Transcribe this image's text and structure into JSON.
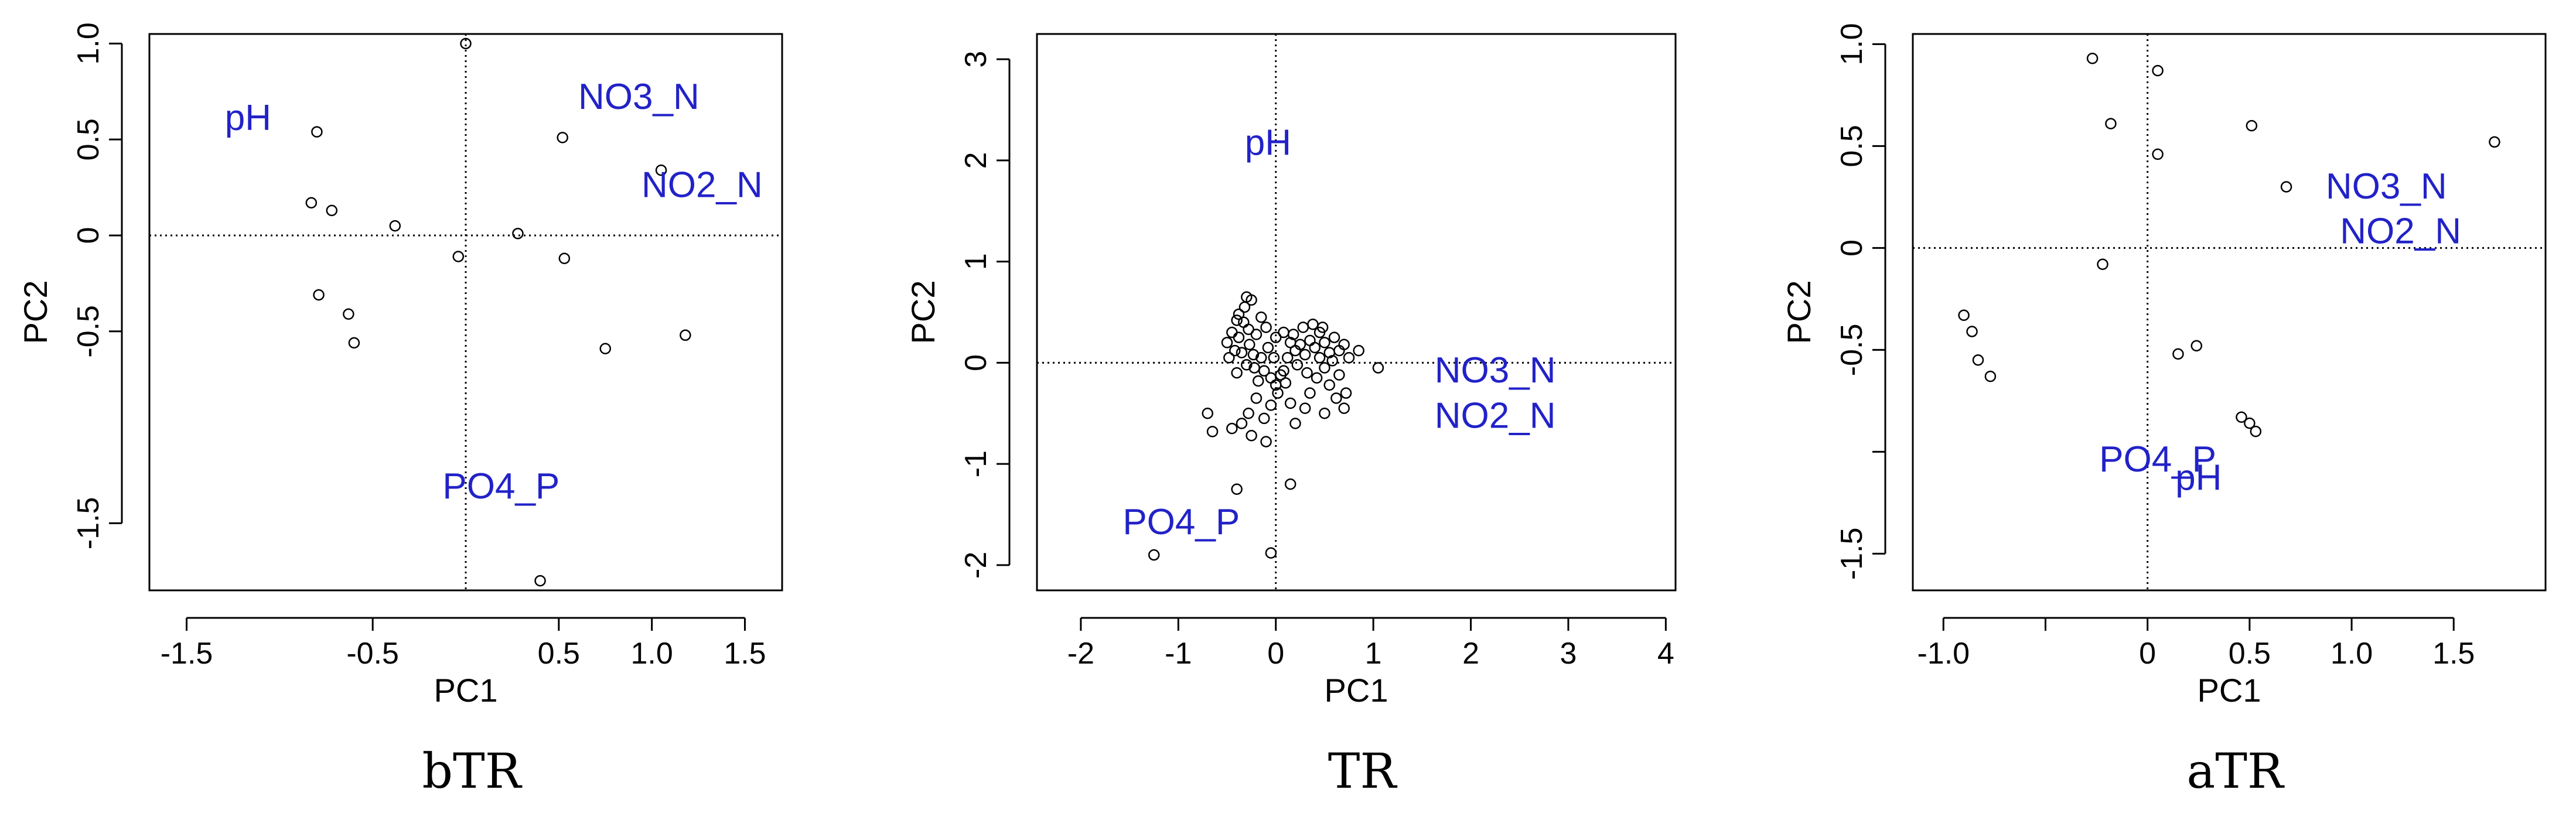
{
  "chart_data": [
    {
      "type": "scatter",
      "caption": "bTR",
      "xlabel": "PC1",
      "ylabel": "PC2",
      "xlim": [
        -1.7,
        1.7
      ],
      "ylim": [
        -1.85,
        1.05
      ],
      "xticks": [
        {
          "v": -1.5,
          "label": "-1.5"
        },
        {
          "v": -0.5,
          "label": "-0.5"
        },
        {
          "v": 0.5,
          "label": "0.5"
        },
        {
          "v": 1.0,
          "label": "1.0"
        },
        {
          "v": 1.5,
          "label": "1.5"
        }
      ],
      "yticks": [
        {
          "v": 1.0,
          "label": "1.0"
        },
        {
          "v": 0.5,
          "label": "0.5"
        },
        {
          "v": 0.0,
          "label": "0"
        },
        {
          "v": -0.5,
          "label": "-0.5"
        },
        {
          "v": -1.5,
          "label": "-1.5"
        }
      ],
      "reference_lines": {
        "x": 0,
        "y": 0,
        "style": "dotted"
      },
      "points": [
        {
          "x": 0.0,
          "y": 1.0
        },
        {
          "x": -0.8,
          "y": 0.54
        },
        {
          "x": 0.52,
          "y": 0.51
        },
        {
          "x": 1.05,
          "y": 0.34
        },
        {
          "x": -0.83,
          "y": 0.17
        },
        {
          "x": -0.72,
          "y": 0.13
        },
        {
          "x": -0.38,
          "y": 0.05
        },
        {
          "x": -0.04,
          "y": -0.11
        },
        {
          "x": 0.28,
          "y": 0.01
        },
        {
          "x": 0.53,
          "y": -0.12
        },
        {
          "x": -0.79,
          "y": -0.31
        },
        {
          "x": -0.63,
          "y": -0.41
        },
        {
          "x": -0.6,
          "y": -0.56
        },
        {
          "x": 0.75,
          "y": -0.59
        },
        {
          "x": 1.18,
          "y": -0.52
        },
        {
          "x": 0.4,
          "y": -1.8
        }
      ],
      "labels": [
        {
          "text": "pH",
          "x": -1.17,
          "y": 0.6
        },
        {
          "text": "NO3_N",
          "x": 0.93,
          "y": 0.71
        },
        {
          "text": "NO2_N",
          "x": 1.27,
          "y": 0.25
        },
        {
          "text": "PO4_P",
          "x": 0.19,
          "y": -1.32
        }
      ]
    },
    {
      "type": "scatter",
      "caption": "TR",
      "xlabel": "PC1",
      "ylabel": "PC2",
      "xlim": [
        -2.45,
        4.1
      ],
      "ylim": [
        -2.25,
        3.25
      ],
      "xticks": [
        {
          "v": -2,
          "label": "-2"
        },
        {
          "v": -1,
          "label": "-1"
        },
        {
          "v": 0,
          "label": "0"
        },
        {
          "v": 1,
          "label": "1"
        },
        {
          "v": 2,
          "label": "2"
        },
        {
          "v": 3,
          "label": "3"
        },
        {
          "v": 4,
          "label": "4"
        }
      ],
      "yticks": [
        {
          "v": 3,
          "label": "3"
        },
        {
          "v": 2,
          "label": "2"
        },
        {
          "v": 1,
          "label": "1"
        },
        {
          "v": 0,
          "label": "0"
        },
        {
          "v": -1,
          "label": "-1"
        },
        {
          "v": -2,
          "label": "-2"
        }
      ],
      "reference_lines": {
        "x": 0,
        "y": 0,
        "style": "dotted"
      },
      "points": [
        {
          "x": -0.3,
          "y": 0.65
        },
        {
          "x": -0.25,
          "y": 0.62
        },
        {
          "x": -0.32,
          "y": 0.55
        },
        {
          "x": -0.4,
          "y": 0.42
        },
        {
          "x": -0.33,
          "y": 0.4
        },
        {
          "x": -0.28,
          "y": 0.33
        },
        {
          "x": -0.45,
          "y": 0.3
        },
        {
          "x": -0.38,
          "y": 0.25
        },
        {
          "x": -0.2,
          "y": 0.28
        },
        {
          "x": -0.5,
          "y": 0.2
        },
        {
          "x": -0.42,
          "y": 0.12
        },
        {
          "x": -0.35,
          "y": 0.1
        },
        {
          "x": -0.27,
          "y": 0.18
        },
        {
          "x": -0.15,
          "y": 0.45
        },
        {
          "x": -0.1,
          "y": 0.35
        },
        {
          "x": -0.48,
          "y": 0.05
        },
        {
          "x": -0.3,
          "y": -0.02
        },
        {
          "x": -0.22,
          "y": -0.05
        },
        {
          "x": -0.4,
          "y": -0.1
        },
        {
          "x": -0.12,
          "y": -0.08
        },
        {
          "x": -0.05,
          "y": -0.15
        },
        {
          "x": 0.05,
          "y": -0.12
        },
        {
          "x": 0.1,
          "y": -0.2
        },
        {
          "x": 0.02,
          "y": -0.3
        },
        {
          "x": 0.15,
          "y": 0.2
        },
        {
          "x": 0.2,
          "y": 0.12
        },
        {
          "x": 0.25,
          "y": 0.18
        },
        {
          "x": 0.3,
          "y": 0.08
        },
        {
          "x": 0.35,
          "y": 0.22
        },
        {
          "x": 0.4,
          "y": 0.15
        },
        {
          "x": 0.45,
          "y": 0.3
        },
        {
          "x": 0.5,
          "y": 0.2
        },
        {
          "x": 0.55,
          "y": 0.1
        },
        {
          "x": 0.6,
          "y": 0.25
        },
        {
          "x": 0.65,
          "y": 0.12
        },
        {
          "x": 0.7,
          "y": 0.18
        },
        {
          "x": 0.75,
          "y": 0.05
        },
        {
          "x": 0.85,
          "y": 0.12
        },
        {
          "x": 1.05,
          "y": -0.05
        },
        {
          "x": 0.5,
          "y": -0.05
        },
        {
          "x": 0.42,
          "y": -0.15
        },
        {
          "x": 0.55,
          "y": -0.22
        },
        {
          "x": 0.35,
          "y": -0.3
        },
        {
          "x": 0.62,
          "y": -0.35
        },
        {
          "x": 0.7,
          "y": -0.45
        },
        {
          "x": 0.5,
          "y": -0.5
        },
        {
          "x": 0.3,
          "y": -0.45
        },
        {
          "x": 0.2,
          "y": -0.6
        },
        {
          "x": 0.15,
          "y": -0.4
        },
        {
          "x": -0.05,
          "y": -0.42
        },
        {
          "x": -0.12,
          "y": -0.55
        },
        {
          "x": -0.2,
          "y": -0.35
        },
        {
          "x": -0.28,
          "y": -0.5
        },
        {
          "x": -0.35,
          "y": -0.6
        },
        {
          "x": -0.45,
          "y": -0.65
        },
        {
          "x": -0.7,
          "y": -0.5
        },
        {
          "x": -0.65,
          "y": -0.68
        },
        {
          "x": -0.25,
          "y": -0.72
        },
        {
          "x": -0.1,
          "y": -0.78
        },
        {
          "x": -0.4,
          "y": -1.25
        },
        {
          "x": 0.15,
          "y": -1.2
        },
        {
          "x": -0.05,
          "y": -1.88
        },
        {
          "x": -1.25,
          "y": -1.9
        },
        {
          "x": -0.08,
          "y": 0.15
        },
        {
          "x": 0.0,
          "y": 0.25
        },
        {
          "x": 0.08,
          "y": 0.3
        },
        {
          "x": 0.12,
          "y": 0.05
        },
        {
          "x": 0.22,
          "y": -0.02
        },
        {
          "x": 0.28,
          "y": 0.35
        },
        {
          "x": 0.38,
          "y": 0.38
        },
        {
          "x": 0.48,
          "y": 0.35
        },
        {
          "x": 0.58,
          "y": 0.02
        },
        {
          "x": 0.65,
          "y": -0.12
        },
        {
          "x": -0.15,
          "y": 0.05
        },
        {
          "x": -0.18,
          "y": -0.18
        },
        {
          "x": 0.0,
          "y": -0.22
        },
        {
          "x": 0.08,
          "y": -0.08
        },
        {
          "x": -0.38,
          "y": 0.48
        },
        {
          "x": -0.23,
          "y": 0.08
        },
        {
          "x": 0.32,
          "y": -0.1
        },
        {
          "x": 0.45,
          "y": 0.05
        },
        {
          "x": 0.18,
          "y": 0.28
        },
        {
          "x": -0.02,
          "y": 0.05
        },
        {
          "x": 0.72,
          "y": -0.3
        }
      ],
      "labels": [
        {
          "text": "pH",
          "x": -0.08,
          "y": 2.15
        },
        {
          "text": "NO3_N",
          "x": 2.25,
          "y": -0.1
        },
        {
          "text": "NO2_N",
          "x": 2.25,
          "y": -0.55
        },
        {
          "text": "PO4_P",
          "x": -0.97,
          "y": -1.6
        }
      ]
    },
    {
      "type": "scatter",
      "caption": "aTR",
      "xlabel": "PC1",
      "ylabel": "PC2",
      "xlim": [
        -1.15,
        1.95
      ],
      "ylim": [
        -1.68,
        1.05
      ],
      "xticks": [
        {
          "v": -1.0,
          "label": "-1.0"
        },
        {
          "v": -0.5,
          "label": ""
        },
        {
          "v": 0.0,
          "label": "0"
        },
        {
          "v": 0.5,
          "label": "0.5"
        },
        {
          "v": 1.0,
          "label": "1.0"
        },
        {
          "v": 1.5,
          "label": "1.5"
        }
      ],
      "yticks": [
        {
          "v": 1.0,
          "label": "1.0"
        },
        {
          "v": 0.5,
          "label": "0.5"
        },
        {
          "v": 0.0,
          "label": "0"
        },
        {
          "v": -0.5,
          "label": "-0.5"
        },
        {
          "v": -1.0,
          "label": ""
        },
        {
          "v": -1.5,
          "label": "-1.5"
        }
      ],
      "reference_lines": {
        "x": 0,
        "y": 0,
        "style": "dotted"
      },
      "points": [
        {
          "x": -0.27,
          "y": 0.93
        },
        {
          "x": 0.05,
          "y": 0.87
        },
        {
          "x": -0.18,
          "y": 0.61
        },
        {
          "x": 0.51,
          "y": 0.6
        },
        {
          "x": 1.7,
          "y": 0.52
        },
        {
          "x": 0.05,
          "y": 0.46
        },
        {
          "x": 0.68,
          "y": 0.3
        },
        {
          "x": -0.22,
          "y": -0.08
        },
        {
          "x": -0.9,
          "y": -0.33
        },
        {
          "x": -0.86,
          "y": -0.41
        },
        {
          "x": -0.83,
          "y": -0.55
        },
        {
          "x": -0.77,
          "y": -0.63
        },
        {
          "x": 0.15,
          "y": -0.52
        },
        {
          "x": 0.24,
          "y": -0.48
        },
        {
          "x": 0.46,
          "y": -0.83
        },
        {
          "x": 0.5,
          "y": -0.86
        },
        {
          "x": 0.53,
          "y": -0.9
        }
      ],
      "labels": [
        {
          "text": "NO3_N",
          "x": 1.17,
          "y": 0.29
        },
        {
          "text": "NO2_N",
          "x": 1.24,
          "y": 0.07
        },
        {
          "text": "PO4_P",
          "x": 0.05,
          "y": -1.05
        },
        {
          "text": "pH",
          "x": 0.25,
          "y": -1.14
        }
      ]
    }
  ],
  "colors": {
    "label": "#2222c8",
    "axis": "#000000",
    "point": "#000000",
    "caption": "#000000"
  }
}
